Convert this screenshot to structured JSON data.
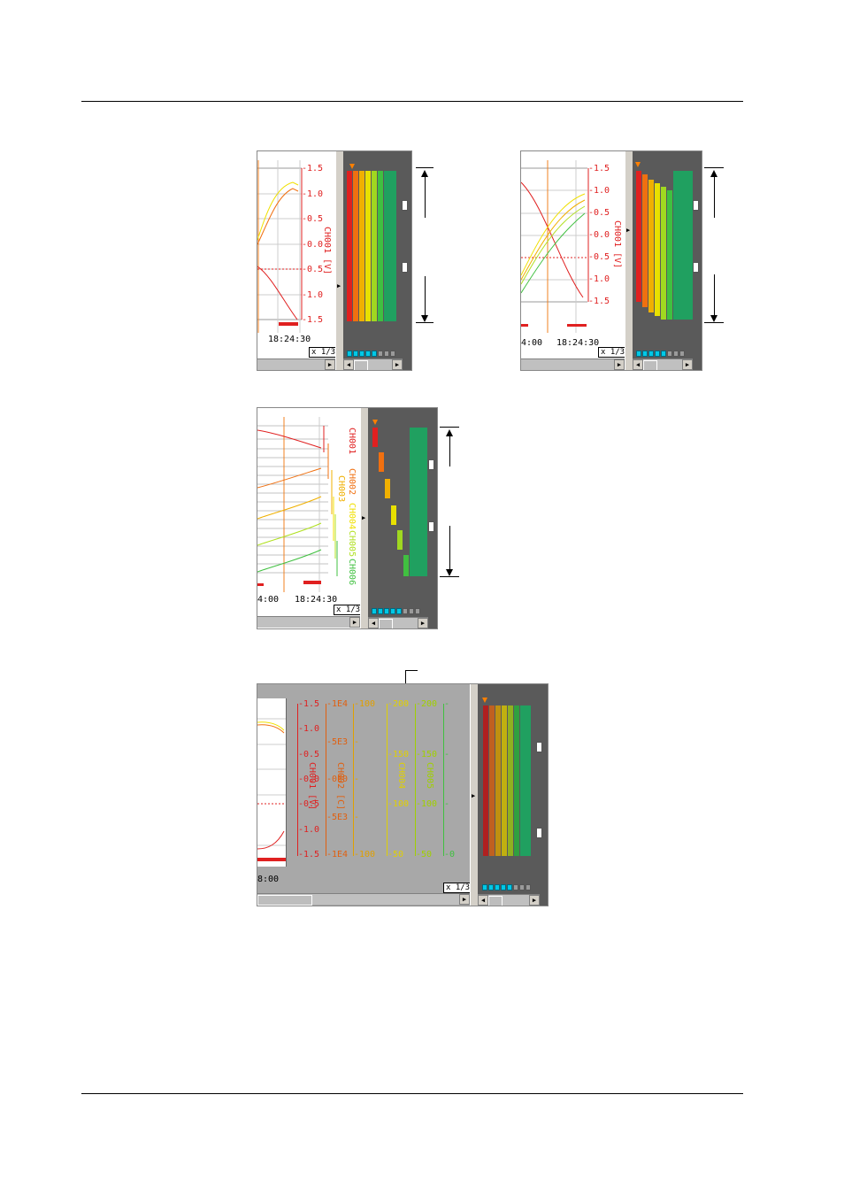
{
  "panel_a": {
    "ticks": [
      "1.5",
      "1.0",
      "0.5",
      "0.0",
      "0.5",
      "1.0",
      "1.5"
    ],
    "channel_label": "CH001 [V]",
    "time": "18:24:30",
    "zoom": "x 1/3"
  },
  "panel_b": {
    "ticks": [
      "1.5",
      "1.0",
      "0.5",
      "0.0",
      "0.5",
      "1.0",
      "1.5"
    ],
    "channel_label": "CH001 [V]",
    "time_left": "4:00",
    "time": "18:24:30",
    "zoom": "x 1/3"
  },
  "panel_c": {
    "channel_labels": [
      "CH001",
      "CH002",
      "CH003",
      "CH004",
      "CH005",
      "CH006"
    ],
    "time_left": "4:00",
    "time": "18:24:30",
    "zoom": "x 1/3"
  },
  "panel_d": {
    "scales": [
      {
        "ticks": [
          "1.5",
          "1.0",
          "0.5",
          "0.0",
          "0.5",
          "1.0",
          "1.5"
        ],
        "label": "CH001 [V]",
        "color": "#e02020"
      },
      {
        "ticks": [
          "1E4",
          "5E3",
          "0E0",
          "5E3",
          "1E4"
        ],
        "label": "CH002 [C]",
        "color": "#e06010"
      },
      {
        "ticks": [
          "100",
          "",
          "",
          "",
          "100"
        ],
        "label": "",
        "color": "#e0a000"
      },
      {
        "ticks": [
          "200",
          "150",
          "100",
          "50"
        ],
        "label": "CH004",
        "color": "#e0d000"
      },
      {
        "ticks": [
          "200",
          "150",
          "100",
          "50"
        ],
        "label": "CH005",
        "color": "#a0d000"
      },
      {
        "ticks": [
          "",
          "",
          "",
          "0"
        ],
        "label": "",
        "color": "#40c040"
      }
    ],
    "time_left": "8:00",
    "zoom": "x 1/3"
  },
  "colors": {
    "ch1": "#e02020",
    "ch2": "#f07010",
    "ch3": "#f0b000",
    "ch4": "#f0e000",
    "ch5": "#b0e020",
    "ch6": "#40c040",
    "teal": "#20b070"
  }
}
